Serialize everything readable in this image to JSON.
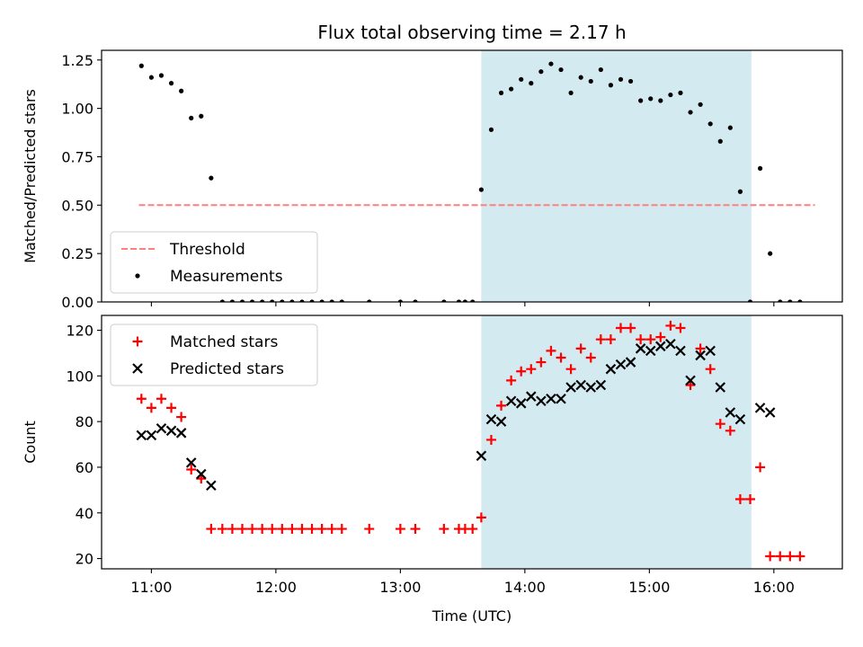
{
  "title": "Flux total observing time = 2.17 h",
  "chart_data": [
    {
      "type": "scatter",
      "ylabel": "Matched/Predicted stars",
      "xlabel": "",
      "xlim": [
        10.6,
        16.55
      ],
      "ylim": [
        0,
        1.3
      ],
      "yticks": [
        0,
        0.25,
        0.5,
        0.75,
        1.0,
        1.25
      ],
      "ytick_labels": [
        "0.00",
        "0.25",
        "0.50",
        "0.75",
        "1.00",
        "1.25"
      ],
      "highlight_span": [
        13.65,
        15.82
      ],
      "threshold": {
        "label": "Threshold",
        "value": 0.5,
        "x_range": [
          10.9,
          16.33
        ],
        "color": "#ff7f7f"
      },
      "legend_position": "lower left",
      "series": [
        {
          "name": "Measurements",
          "color": "#000000",
          "points": [
            [
              10.92,
              1.22
            ],
            [
              11.0,
              1.16
            ],
            [
              11.08,
              1.17
            ],
            [
              11.16,
              1.13
            ],
            [
              11.24,
              1.09
            ],
            [
              11.32,
              0.95
            ],
            [
              11.4,
              0.96
            ],
            [
              11.48,
              0.64
            ],
            [
              11.57,
              0
            ],
            [
              11.65,
              0
            ],
            [
              11.73,
              0
            ],
            [
              11.81,
              0
            ],
            [
              11.89,
              0
            ],
            [
              11.97,
              0
            ],
            [
              12.05,
              0
            ],
            [
              12.13,
              0
            ],
            [
              12.21,
              0
            ],
            [
              12.29,
              0
            ],
            [
              12.37,
              0
            ],
            [
              12.45,
              0
            ],
            [
              12.53,
              0
            ],
            [
              12.75,
              0
            ],
            [
              13.0,
              0
            ],
            [
              13.12,
              0
            ],
            [
              13.35,
              0
            ],
            [
              13.47,
              0
            ],
            [
              13.52,
              0
            ],
            [
              13.58,
              0
            ],
            [
              13.65,
              0.58
            ],
            [
              13.73,
              0.89
            ],
            [
              13.81,
              1.08
            ],
            [
              13.89,
              1.1
            ],
            [
              13.97,
              1.15
            ],
            [
              14.05,
              1.13
            ],
            [
              14.13,
              1.19
            ],
            [
              14.21,
              1.23
            ],
            [
              14.29,
              1.2
            ],
            [
              14.37,
              1.08
            ],
            [
              14.45,
              1.16
            ],
            [
              14.53,
              1.14
            ],
            [
              14.61,
              1.2
            ],
            [
              14.69,
              1.12
            ],
            [
              14.77,
              1.15
            ],
            [
              14.85,
              1.14
            ],
            [
              14.93,
              1.04
            ],
            [
              15.01,
              1.05
            ],
            [
              15.09,
              1.04
            ],
            [
              15.17,
              1.07
            ],
            [
              15.25,
              1.08
            ],
            [
              15.33,
              0.98
            ],
            [
              15.41,
              1.02
            ],
            [
              15.49,
              0.92
            ],
            [
              15.57,
              0.83
            ],
            [
              15.65,
              0.9
            ],
            [
              15.73,
              0.57
            ],
            [
              15.81,
              0
            ],
            [
              15.89,
              0.69
            ],
            [
              15.97,
              0.25
            ],
            [
              16.05,
              0
            ],
            [
              16.13,
              0
            ],
            [
              16.21,
              0
            ]
          ]
        }
      ]
    },
    {
      "type": "scatter",
      "ylabel": "Count",
      "xlabel": "Time (UTC)",
      "xlim": [
        10.6,
        16.55
      ],
      "ylim": [
        15.5,
        126.5
      ],
      "yticks": [
        20,
        40,
        60,
        80,
        100,
        120
      ],
      "ytick_labels": [
        "20",
        "40",
        "60",
        "80",
        "100",
        "120"
      ],
      "xticks": [
        11,
        12,
        13,
        14,
        15,
        16
      ],
      "xtick_labels": [
        "11:00",
        "12:00",
        "13:00",
        "14:00",
        "15:00",
        "16:00"
      ],
      "highlight_span": [
        13.65,
        15.82
      ],
      "legend_position": "upper left",
      "series": [
        {
          "name": "Matched stars",
          "marker": "plus",
          "color": "#ff0000",
          "points": [
            [
              10.92,
              90
            ],
            [
              11.0,
              86
            ],
            [
              11.08,
              90
            ],
            [
              11.16,
              86
            ],
            [
              11.24,
              82
            ],
            [
              11.32,
              59
            ],
            [
              11.4,
              55
            ],
            [
              11.48,
              33
            ],
            [
              11.57,
              33
            ],
            [
              11.65,
              33
            ],
            [
              11.73,
              33
            ],
            [
              11.81,
              33
            ],
            [
              11.89,
              33
            ],
            [
              11.97,
              33
            ],
            [
              12.05,
              33
            ],
            [
              12.13,
              33
            ],
            [
              12.21,
              33
            ],
            [
              12.29,
              33
            ],
            [
              12.37,
              33
            ],
            [
              12.45,
              33
            ],
            [
              12.53,
              33
            ],
            [
              12.75,
              33
            ],
            [
              13.0,
              33
            ],
            [
              13.12,
              33
            ],
            [
              13.35,
              33
            ],
            [
              13.47,
              33
            ],
            [
              13.52,
              33
            ],
            [
              13.58,
              33
            ],
            [
              13.65,
              38
            ],
            [
              13.73,
              72
            ],
            [
              13.81,
              87
            ],
            [
              13.89,
              98
            ],
            [
              13.97,
              102
            ],
            [
              14.05,
              103
            ],
            [
              14.13,
              106
            ],
            [
              14.21,
              111
            ],
            [
              14.29,
              108
            ],
            [
              14.37,
              103
            ],
            [
              14.45,
              112
            ],
            [
              14.53,
              108
            ],
            [
              14.61,
              116
            ],
            [
              14.69,
              116
            ],
            [
              14.77,
              121
            ],
            [
              14.85,
              121
            ],
            [
              14.93,
              116
            ],
            [
              15.01,
              116
            ],
            [
              15.09,
              117
            ],
            [
              15.17,
              122
            ],
            [
              15.25,
              121
            ],
            [
              15.33,
              96
            ],
            [
              15.41,
              112
            ],
            [
              15.49,
              103
            ],
            [
              15.57,
              79
            ],
            [
              15.65,
              76
            ],
            [
              15.73,
              46
            ],
            [
              15.81,
              46
            ],
            [
              15.89,
              60
            ],
            [
              15.97,
              21
            ],
            [
              16.05,
              21
            ],
            [
              16.13,
              21
            ],
            [
              16.21,
              21
            ]
          ]
        },
        {
          "name": "Predicted stars",
          "marker": "x",
          "color": "#000000",
          "points": [
            [
              10.92,
              74
            ],
            [
              11.0,
              74
            ],
            [
              11.08,
              77
            ],
            [
              11.16,
              76
            ],
            [
              11.24,
              75
            ],
            [
              11.32,
              62
            ],
            [
              11.4,
              57
            ],
            [
              11.48,
              52
            ],
            [
              13.65,
              65
            ],
            [
              13.73,
              81
            ],
            [
              13.81,
              80
            ],
            [
              13.89,
              89
            ],
            [
              13.97,
              88
            ],
            [
              14.05,
              91
            ],
            [
              14.13,
              89
            ],
            [
              14.21,
              90
            ],
            [
              14.29,
              90
            ],
            [
              14.37,
              95
            ],
            [
              14.45,
              96
            ],
            [
              14.53,
              95
            ],
            [
              14.61,
              96
            ],
            [
              14.69,
              103
            ],
            [
              14.77,
              105
            ],
            [
              14.85,
              106
            ],
            [
              14.93,
              112
            ],
            [
              15.01,
              111
            ],
            [
              15.09,
              113
            ],
            [
              15.17,
              114
            ],
            [
              15.25,
              111
            ],
            [
              15.33,
              98
            ],
            [
              15.41,
              109
            ],
            [
              15.49,
              111
            ],
            [
              15.57,
              95
            ],
            [
              15.65,
              84
            ],
            [
              15.73,
              81
            ],
            [
              15.89,
              86
            ],
            [
              15.97,
              84
            ]
          ]
        }
      ]
    }
  ]
}
